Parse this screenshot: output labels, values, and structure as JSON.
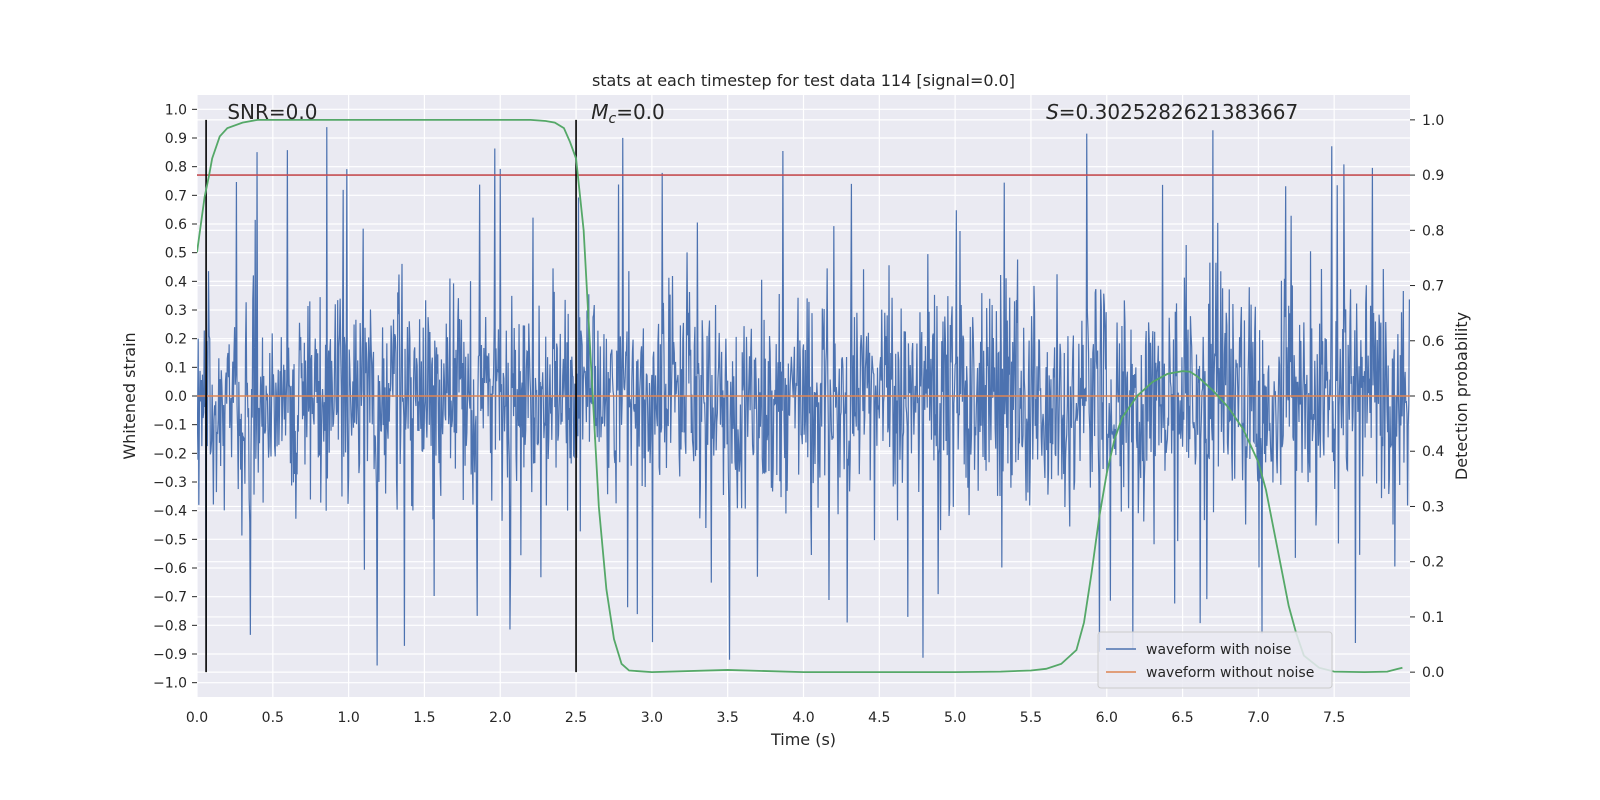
{
  "chart_data": {
    "type": "line",
    "title": "stats at each timestep for test data 114 [signal=0.0]",
    "xlabel": "Time (s)",
    "ylabel_left": "Whitened strain",
    "ylabel_right": "Detection probability",
    "xlim": [
      0.0,
      8.0
    ],
    "ylim_left": [
      -1.05,
      1.05
    ],
    "ylim_right": [
      -0.045,
      1.045
    ],
    "x_ticks": [
      "0.0",
      "0.5",
      "1.0",
      "1.5",
      "2.0",
      "2.5",
      "3.0",
      "3.5",
      "4.0",
      "4.5",
      "5.0",
      "5.5",
      "6.0",
      "6.5",
      "7.0",
      "7.5"
    ],
    "x_tick_values": [
      0.0,
      0.5,
      1.0,
      1.5,
      2.0,
      2.5,
      3.0,
      3.5,
      4.0,
      4.5,
      5.0,
      5.5,
      6.0,
      6.5,
      7.0,
      7.5
    ],
    "y_left_ticks": [
      "1.0",
      "0.9",
      "0.8",
      "0.7",
      "0.6",
      "0.5",
      "0.4",
      "0.3",
      "0.2",
      "0.1",
      "0.0",
      "−0.1",
      "−0.2",
      "−0.3",
      "−0.4",
      "−0.5",
      "−0.6",
      "−0.7",
      "−0.8",
      "−0.9",
      "−1.0"
    ],
    "y_left_tick_values": [
      1.0,
      0.9,
      0.8,
      0.7,
      0.6,
      0.5,
      0.4,
      0.3,
      0.2,
      0.1,
      0.0,
      -0.1,
      -0.2,
      -0.3,
      -0.4,
      -0.5,
      -0.6,
      -0.7,
      -0.8,
      -0.9,
      -1.0
    ],
    "y_right_ticks": [
      "1.0",
      "0.9",
      "0.8",
      "0.7",
      "0.6",
      "0.5",
      "0.4",
      "0.3",
      "0.2",
      "0.1",
      "0.0"
    ],
    "y_right_tick_values": [
      1.0,
      0.9,
      0.8,
      0.7,
      0.6,
      0.5,
      0.4,
      0.3,
      0.2,
      0.1,
      0.0
    ],
    "annotations": {
      "snr": "SNR=0.0",
      "mc_symbol": "M",
      "mc_sub": "c",
      "mc_value": "=0.0",
      "s_symbol": "S",
      "s_value": "=0.3025282621383667"
    },
    "vertical_lines_x": [
      0.06,
      2.5
    ],
    "threshold_right_y": 0.9,
    "series": [
      {
        "name": "waveform with noise",
        "color": "#4c72b0",
        "description": "dense noise from t=0 to 8s, typical amplitude ±0.45, spikes to about ±1.0",
        "seed": 114,
        "sample_rate": 250,
        "duration": 8.0
      },
      {
        "name": "waveform without noise",
        "color": "#dd8452",
        "constant_value": 0.0
      },
      {
        "name": "detection probability",
        "color": "#55a868",
        "x": [
          0.0,
          0.02,
          0.05,
          0.08,
          0.1,
          0.15,
          0.2,
          0.3,
          0.4,
          0.6,
          1.0,
          1.5,
          2.0,
          2.2,
          2.3,
          2.36,
          2.42,
          2.46,
          2.5,
          2.55,
          2.6,
          2.65,
          2.7,
          2.75,
          2.8,
          2.85,
          3.0,
          3.5,
          4.0,
          4.5,
          5.0,
          5.3,
          5.5,
          5.6,
          5.7,
          5.8,
          5.85,
          5.9,
          5.95,
          6.0,
          6.05,
          6.1,
          6.2,
          6.3,
          6.4,
          6.5,
          6.55,
          6.6,
          6.7,
          6.8,
          6.9,
          7.0,
          7.05,
          7.1,
          7.15,
          7.2,
          7.25,
          7.3,
          7.4,
          7.5,
          7.7,
          7.85,
          7.95
        ],
        "y": [
          0.76,
          0.8,
          0.86,
          0.9,
          0.93,
          0.97,
          0.985,
          0.995,
          1.0,
          1.0,
          1.0,
          1.0,
          1.0,
          1.0,
          0.998,
          0.995,
          0.985,
          0.96,
          0.93,
          0.8,
          0.55,
          0.3,
          0.15,
          0.06,
          0.015,
          0.003,
          0.0,
          0.004,
          0.0,
          0.0,
          0.0,
          0.001,
          0.003,
          0.006,
          0.015,
          0.04,
          0.09,
          0.18,
          0.28,
          0.36,
          0.42,
          0.46,
          0.5,
          0.525,
          0.54,
          0.545,
          0.544,
          0.535,
          0.51,
          0.48,
          0.44,
          0.38,
          0.33,
          0.26,
          0.19,
          0.12,
          0.07,
          0.03,
          0.008,
          0.001,
          0.0,
          0.001,
          0.008
        ]
      },
      {
        "name": "threshold",
        "color": "#c44e52",
        "constant_value": 0.9
      }
    ],
    "legend": {
      "position": "lower-right",
      "entries": [
        {
          "label": "waveform with noise",
          "color": "#4c72b0"
        },
        {
          "label": "waveform without noise",
          "color": "#dd8452"
        }
      ]
    },
    "grid": true,
    "background_color": "#eaeaf2",
    "grid_color": "#ffffff"
  }
}
